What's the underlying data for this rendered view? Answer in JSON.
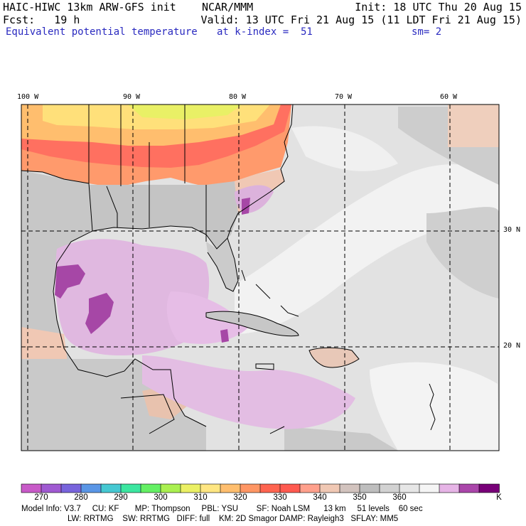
{
  "header": {
    "model_title": "HAIC-HIWC 13km ARW-GFS init",
    "agency": "NCAR/MMM",
    "init_text": "Init: 18 UTC Thu 20 Aug 15",
    "fcst_label": "Fcst:",
    "fcst_value": "19 h",
    "valid_text": "Valid: 13 UTC Fri 21 Aug 15 (11 LDT Fri 21 Aug 15)",
    "field_name": "Equivalent potential temperature",
    "level_text": "at k-index =  51",
    "smoothing_text": "sm= 2"
  },
  "map": {
    "longitude_labels": [
      "100 W",
      "90 W",
      "80 W",
      "70 W",
      "60 W"
    ],
    "latitude_labels": [
      "30 N",
      "20 N"
    ]
  },
  "colorbar": {
    "unit": "K",
    "tick_labels": [
      "270",
      "280",
      "290",
      "300",
      "310",
      "320",
      "330",
      "340",
      "350",
      "360"
    ],
    "colors": [
      "#c85ac8",
      "#a05ad2",
      "#7864dc",
      "#5a96e6",
      "#46c8d2",
      "#3ce6a0",
      "#64f064",
      "#aaf050",
      "#ebf064",
      "#ffe682",
      "#ffbe6e",
      "#ff9664",
      "#ff6450",
      "#ff5a50",
      "#ffa08c",
      "#f0c8b4",
      "#d2c3be",
      "#bebebe",
      "#d2d2d2",
      "#e6e6e6",
      "#f5f5f5",
      "#e6b4e6",
      "#aa46aa",
      "#780078"
    ]
  },
  "footer": {
    "line1": "Model Info: V3.7     CU: KF       MP: Thompson     PBL: YSU        SF: Noah LSM      13 km     51 levels    60 sec",
    "line2": "LW: RRTMG    SW: RRTMG   DIFF: full    KM: 2D Smagor DAMP: Rayleigh3   SFLAY: MM5"
  }
}
